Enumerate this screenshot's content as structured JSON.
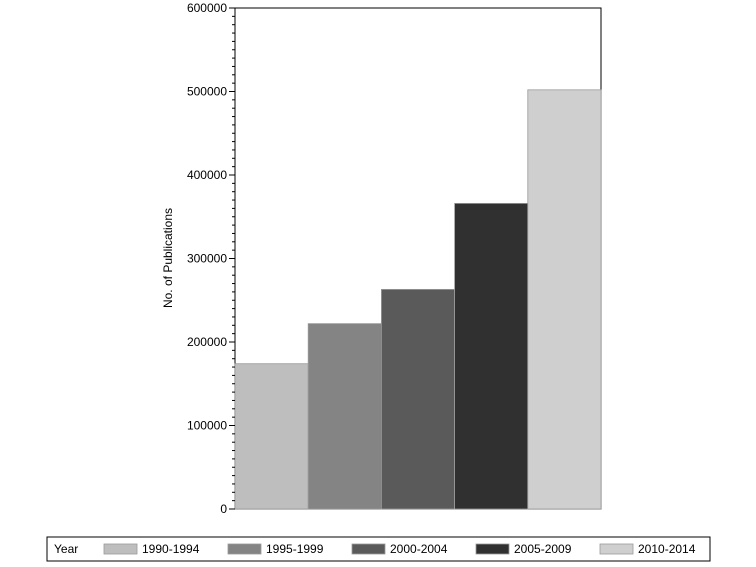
{
  "chart_data": {
    "type": "bar",
    "title": "",
    "ylabel": "No. of Publications",
    "xlabel": "",
    "ylim": [
      0,
      600000
    ],
    "yticks": [
      0,
      100000,
      200000,
      300000,
      400000,
      500000,
      600000
    ],
    "ytick_labels": [
      "0",
      "100000",
      "200000",
      "300000",
      "400000",
      "500000",
      "600000"
    ],
    "grid": false,
    "legend": {
      "title": "Year",
      "placement": "bottom"
    },
    "series": [
      {
        "name": "1990-1994",
        "value": 174000,
        "color": "#bebebe"
      },
      {
        "name": "1995-1999",
        "value": 222000,
        "color": "#848484"
      },
      {
        "name": "2000-2004",
        "value": 263000,
        "color": "#5a5a5a"
      },
      {
        "name": "2005-2009",
        "value": 366000,
        "color": "#303030"
      },
      {
        "name": "2010-2014",
        "value": 502000,
        "color": "#cfcfcf"
      }
    ]
  }
}
